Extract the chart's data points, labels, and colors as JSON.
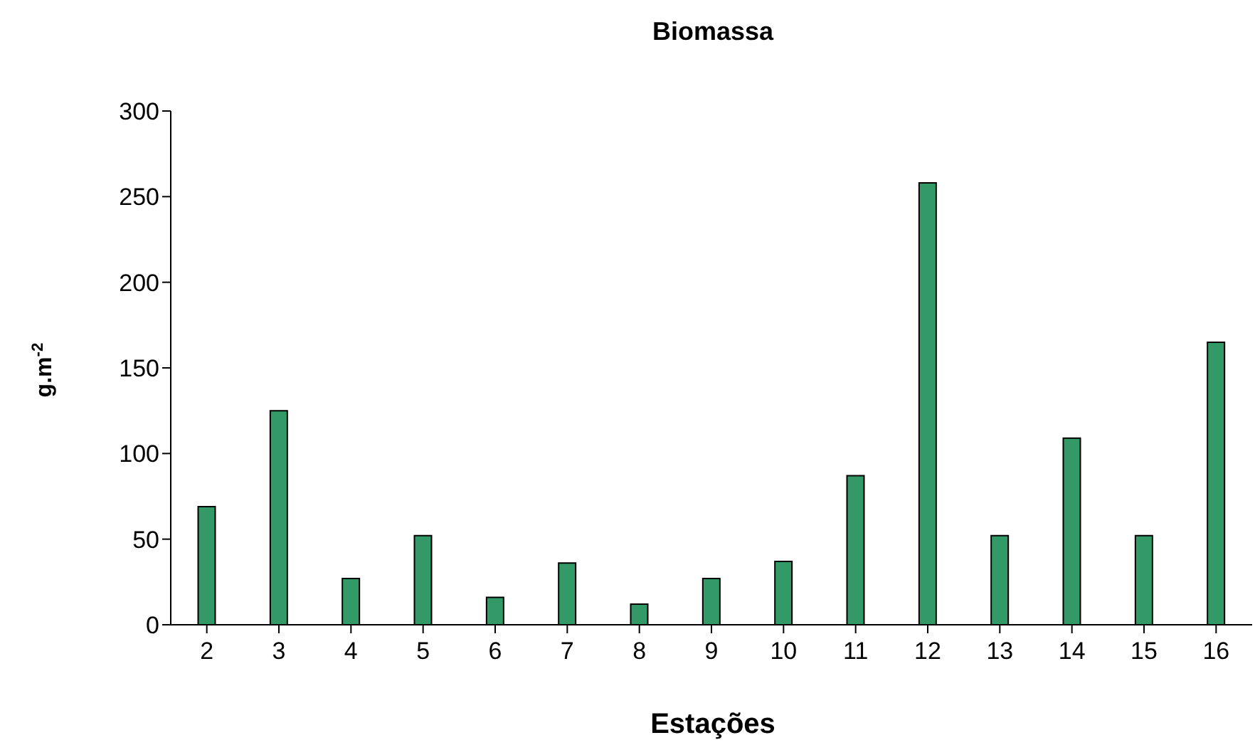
{
  "chart_data": {
    "type": "bar",
    "title": "Biomassa",
    "xlabel": "Estações",
    "ylabel": "g.m$^{-2}$",
    "categories": [
      "2",
      "3",
      "4",
      "5",
      "6",
      "7",
      "8",
      "9",
      "10",
      "11",
      "12",
      "13",
      "14",
      "15",
      "16"
    ],
    "values": [
      69,
      125,
      27,
      52,
      16,
      36,
      12,
      27,
      37,
      87,
      258,
      52,
      109,
      52,
      165
    ],
    "color": "#339966",
    "ylim": [
      0,
      300
    ],
    "yticks": [
      0,
      50,
      100,
      150,
      200,
      250,
      300
    ],
    "grid": false,
    "legend": false
  }
}
